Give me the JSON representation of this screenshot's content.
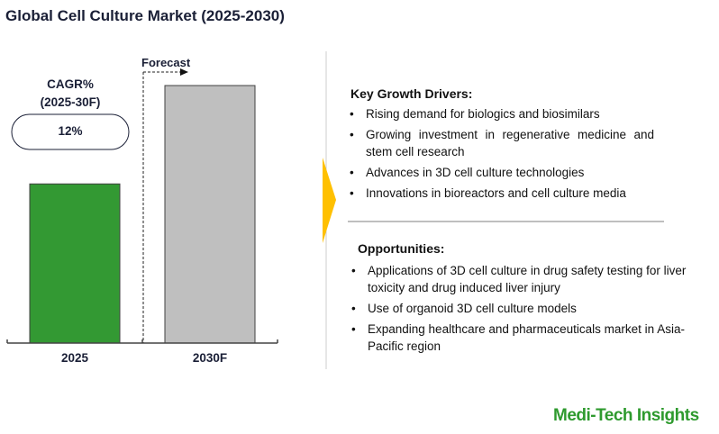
{
  "title": "Global Cell Culture Market (2025-2030)",
  "chart_data": {
    "type": "bar",
    "categories": [
      "2025",
      "2030F"
    ],
    "values": [
      61.8,
      100
    ],
    "ylim": [
      0,
      100
    ],
    "ylabel": "",
    "xlabel": "",
    "colors": [
      "#339933",
      "#bfbfbf"
    ],
    "forecast_label": "Forecast",
    "cagr_label": "CAGR%",
    "cagr_period": "(2025-30F)",
    "cagr_value": "12%"
  },
  "drivers": {
    "heading": "Key Growth Drivers:",
    "items": [
      "Rising demand for biologics and biosimilars",
      "Growing investment in regenerative medicine and stem cell research",
      "Advances in 3D cell culture technologies",
      "Innovations in bioreactors and cell culture media"
    ]
  },
  "opportunities": {
    "heading": "Opportunities:",
    "items": [
      "Applications of 3D cell culture in drug safety testing for liver toxicity and drug induced liver injury",
      "Use of organoid 3D cell culture models",
      "Expanding healthcare and pharmaceuticals market in Asia-Pacific region"
    ]
  },
  "brand": "Medi-Tech Insights",
  "accent": "#FFC000"
}
